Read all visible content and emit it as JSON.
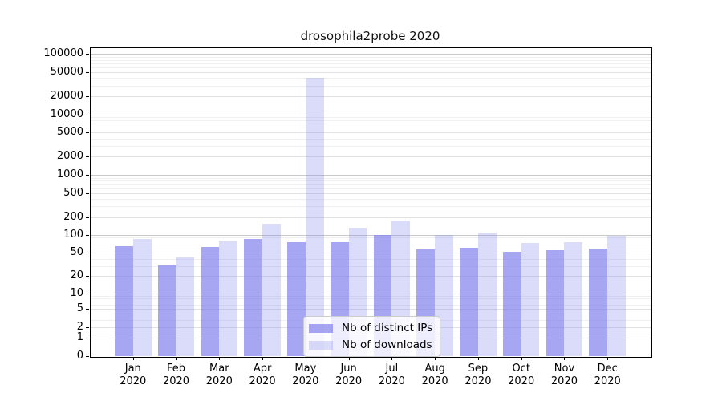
{
  "chart_data": {
    "type": "bar",
    "title": "drosophila2probe 2020",
    "xlabel": "",
    "ylabel": "",
    "y_scale": "log10(value+1), 0 at baseline",
    "ylim": [
      0,
      100000
    ],
    "grid": "horizontal, log major and minor lines",
    "legend_position": "lower center inside plot",
    "categories": [
      "Jan",
      "Feb",
      "Mar",
      "Apr",
      "May",
      "Jun",
      "Jul",
      "Aug",
      "Sep",
      "Oct",
      "Nov",
      "Dec"
    ],
    "category_year": "2020",
    "y_ticks": [
      100000,
      50000,
      20000,
      10000,
      5000,
      2000,
      1000,
      500,
      200,
      100,
      50,
      20,
      10,
      5,
      2,
      1,
      0
    ],
    "series": [
      {
        "name": "Nb of distinct IPs",
        "color": "rgba(124,124,238,0.68)",
        "values": [
          64,
          31,
          63,
          87,
          75,
          75,
          100,
          57,
          62,
          53,
          55,
          59
        ]
      },
      {
        "name": "Nb of downloads",
        "color": "rgba(124,124,238,0.28)",
        "values": [
          87,
          42,
          78,
          153,
          41000,
          132,
          175,
          100,
          108,
          73,
          77,
          96
        ]
      }
    ],
    "colors": {
      "distinct_ips_bar": "#a6a6f0",
      "downloads_bar": "#d9d9f8",
      "grid_major": "#c9c9c9",
      "grid_labeled": "#e2e2e2",
      "grid_minor": "#f0f0f0",
      "axis": "#000000"
    }
  }
}
